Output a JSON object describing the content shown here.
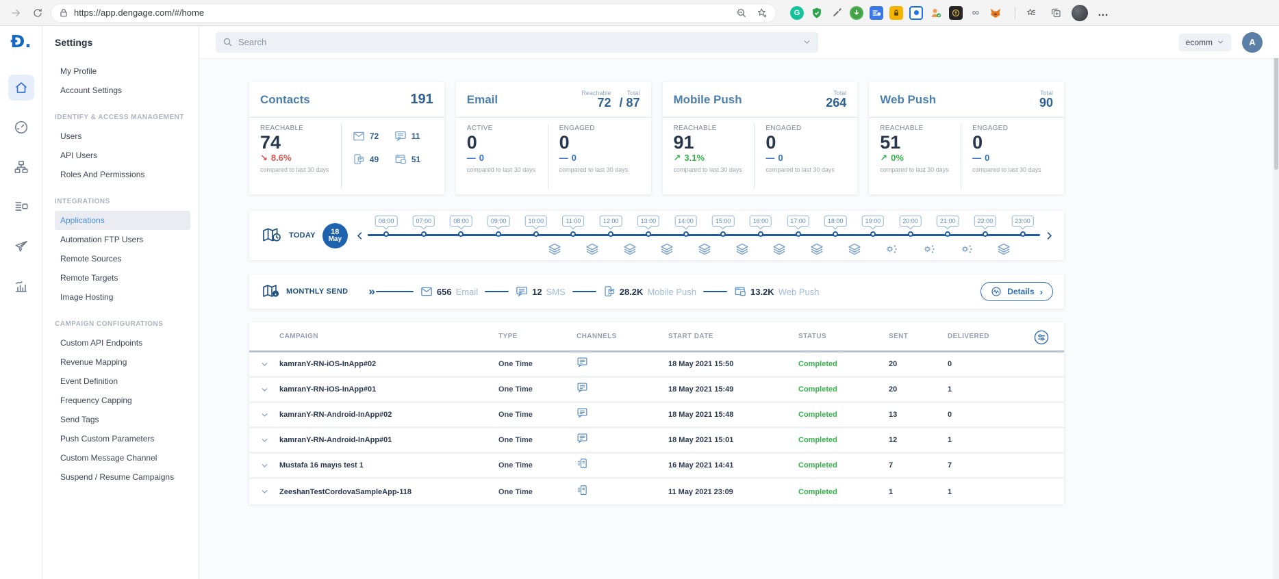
{
  "browser": {
    "url": "https://app.dengage.com/#/home"
  },
  "topbar": {
    "search_placeholder": "Search",
    "account": "ecomm",
    "avatar_initial": "A"
  },
  "sidebar": {
    "title": "Settings",
    "sections": [
      {
        "header": "",
        "items": [
          {
            "label": "My Profile"
          },
          {
            "label": "Account Settings"
          }
        ]
      },
      {
        "header": "IDENTIFY & ACCESS MANAGEMENT",
        "items": [
          {
            "label": "Users"
          },
          {
            "label": "API Users"
          },
          {
            "label": "Roles And Permissions"
          }
        ]
      },
      {
        "header": "INTEGRATIONS",
        "items": [
          {
            "label": "Applications",
            "active": true
          },
          {
            "label": "Automation FTP Users"
          },
          {
            "label": "Remote Sources"
          },
          {
            "label": "Remote Targets"
          },
          {
            "label": "Image Hosting"
          }
        ]
      },
      {
        "header": "CAMPAIGN CONFIGURATIONS",
        "items": [
          {
            "label": "Custom API Endpoints"
          },
          {
            "label": "Revenue Mapping"
          },
          {
            "label": "Event Definition"
          },
          {
            "label": "Frequency Capping"
          },
          {
            "label": "Send Tags"
          },
          {
            "label": "Push Custom Parameters"
          },
          {
            "label": "Custom Message Channel"
          },
          {
            "label": "Suspend / Resume Campaigns"
          }
        ]
      }
    ]
  },
  "cards": {
    "compare_text": "compared to last 30 days",
    "contacts": {
      "title": "Contacts",
      "total": "191",
      "metric_label": "REACHABLE",
      "metric_value": "74",
      "delta_value": "8.6%",
      "delta_dir": "down",
      "channels": [
        {
          "icon": "email",
          "value": "72"
        },
        {
          "icon": "sms",
          "value": "11"
        },
        {
          "icon": "mobile-push",
          "value": "49"
        },
        {
          "icon": "web-push",
          "value": "51"
        }
      ]
    },
    "email": {
      "title": "Email",
      "header_left_label": "Reachable",
      "header_left_value": "72",
      "header_right_label": "Total",
      "header_right_value": "/ 87",
      "cols": [
        {
          "label": "ACTIVE",
          "value": "0",
          "delta_value": "0",
          "delta_dir": "flat"
        },
        {
          "label": "ENGAGED",
          "value": "0",
          "delta_value": "0",
          "delta_dir": "flat"
        }
      ]
    },
    "mobile_push": {
      "title": "Mobile Push",
      "header_right_label": "Total",
      "header_right_value": "264",
      "cols": [
        {
          "label": "REACHABLE",
          "value": "91",
          "delta_value": "3.1%",
          "delta_dir": "up"
        },
        {
          "label": "ENGAGED",
          "value": "0",
          "delta_value": "0",
          "delta_dir": "flat"
        }
      ]
    },
    "web_push": {
      "title": "Web Push",
      "header_right_label": "Total",
      "header_right_value": "90",
      "cols": [
        {
          "label": "REACHABLE",
          "value": "51",
          "delta_value": "0%",
          "delta_dir": "up"
        },
        {
          "label": "ENGAGED",
          "value": "0",
          "delta_value": "0",
          "delta_dir": "flat"
        }
      ]
    }
  },
  "timeline": {
    "today_label": "TODAY",
    "date_day": "18",
    "date_month": "May",
    "hours": [
      {
        "time": "06:00",
        "icon": "none"
      },
      {
        "time": "07:00",
        "icon": "none"
      },
      {
        "time": "08:00",
        "icon": "none"
      },
      {
        "time": "09:00",
        "icon": "none"
      },
      {
        "time": "10:00",
        "icon": "layers"
      },
      {
        "time": "11:00",
        "icon": "layers"
      },
      {
        "time": "12:00",
        "icon": "layers"
      },
      {
        "time": "13:00",
        "icon": "layers"
      },
      {
        "time": "14:00",
        "icon": "layers"
      },
      {
        "time": "15:00",
        "icon": "layers"
      },
      {
        "time": "16:00",
        "icon": "layers"
      },
      {
        "time": "17:00",
        "icon": "layers"
      },
      {
        "time": "18:00",
        "icon": "layers"
      },
      {
        "time": "19:00",
        "icon": "gear"
      },
      {
        "time": "20:00",
        "icon": "gear"
      },
      {
        "time": "21:00",
        "icon": "gear"
      },
      {
        "time": "22:00",
        "icon": "layers"
      },
      {
        "time": "23:00",
        "icon": "none"
      }
    ]
  },
  "monthly_send": {
    "label": "MONTHLY SEND",
    "items": [
      {
        "icon": "email",
        "value": "656",
        "name": "Email"
      },
      {
        "icon": "sms",
        "value": "12",
        "name": "SMS"
      },
      {
        "icon": "mobile-push",
        "value": "28.2K",
        "name": "Mobile Push"
      },
      {
        "icon": "web-push",
        "value": "13.2K",
        "name": "Web Push"
      }
    ],
    "details_label": "Details"
  },
  "table": {
    "columns": [
      "CAMPAIGN",
      "TYPE",
      "CHANNELS",
      "START DATE",
      "STATUS",
      "SENT",
      "DELIVERED"
    ],
    "rows": [
      {
        "campaign": "kamranY-RN-iOS-InApp#02",
        "type": "One Time",
        "channel": "inapp",
        "start_date": "18 May 2021 15:50",
        "status": "Completed",
        "sent": "20",
        "delivered": "0"
      },
      {
        "campaign": "kamranY-RN-iOS-InApp#01",
        "type": "One Time",
        "channel": "inapp",
        "start_date": "18 May 2021 15:49",
        "status": "Completed",
        "sent": "20",
        "delivered": "1"
      },
      {
        "campaign": "kamranY-RN-Android-InApp#02",
        "type": "One Time",
        "channel": "inapp",
        "start_date": "18 May 2021 15:48",
        "status": "Completed",
        "sent": "13",
        "delivered": "0"
      },
      {
        "campaign": "kamranY-RN-Android-InApp#01",
        "type": "One Time",
        "channel": "inapp",
        "start_date": "18 May 2021 15:01",
        "status": "Completed",
        "sent": "12",
        "delivered": "1"
      },
      {
        "campaign": "Mustafa 16 mayıs test 1",
        "type": "One Time",
        "channel": "push",
        "start_date": "16 May 2021 14:41",
        "status": "Completed",
        "sent": "7",
        "delivered": "7"
      },
      {
        "campaign": "ZeeshanTestCordovaSampleApp-118",
        "type": "One Time",
        "channel": "push",
        "start_date": "11 May 2021 23:09",
        "status": "Completed",
        "sent": "1",
        "delivered": "1"
      }
    ]
  }
}
